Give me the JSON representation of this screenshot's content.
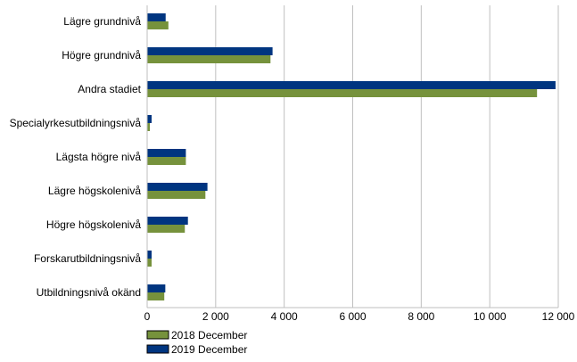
{
  "chart_data": {
    "type": "bar",
    "orientation": "horizontal",
    "title": "",
    "xlabel": "",
    "ylabel": "",
    "categories": [
      "Lägre grundnivå",
      "Högre grundnivå",
      "Andra stadiet",
      "Specialyrkesutbildningsnivå",
      "Lägsta högre nivå",
      "Lägre högskolenivå",
      "Högre högskolenivå",
      "Forskarutbildningsnivå",
      "Utbildningsnivå okänd"
    ],
    "series": [
      {
        "name": "2018 December",
        "color": "#76923c",
        "values": [
          620,
          3600,
          11380,
          80,
          1130,
          1700,
          1100,
          130,
          500
        ]
      },
      {
        "name": "2019 December",
        "color": "#003580",
        "values": [
          540,
          3660,
          11920,
          130,
          1130,
          1760,
          1190,
          130,
          530
        ]
      }
    ],
    "xlim": [
      0,
      12000
    ],
    "ticks": [
      0,
      2000,
      4000,
      6000,
      8000,
      10000,
      12000
    ],
    "tick_labels": [
      "0",
      "2 000",
      "4 000",
      "6 000",
      "8 000",
      "10 000",
      "12 000"
    ],
    "grid": true,
    "legend_position": "bottom-left"
  }
}
